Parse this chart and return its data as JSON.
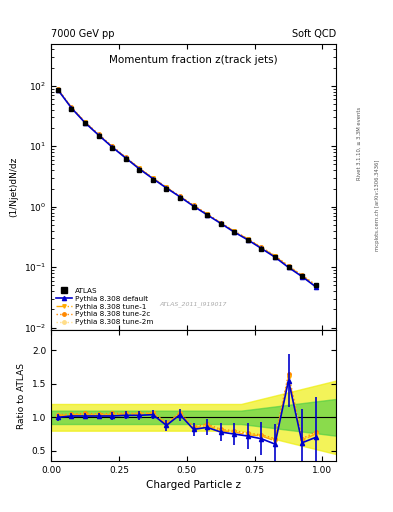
{
  "title_main": "Momentum fraction z(track jets)",
  "header_left": "7000 GeV pp",
  "header_right": "Soft QCD",
  "ylabel_main": "(1/Njet)dN/dz",
  "ylabel_ratio": "Ratio to ATLAS",
  "xlabel": "Charged Particle z",
  "right_label_top": "Rivet 3.1.10, ≥ 3.3M events",
  "right_label_bottom": "mcplots.cern.ch [arXiv:1306.3436]",
  "watermark": "ATLAS_2011_I919017",
  "atlas_label": "ATLAS",
  "legend_entries": [
    "ATLAS",
    "Pythia 8.308 default",
    "Pythia 8.308 tune-1",
    "Pythia 8.308 tune-2c",
    "Pythia 8.308 tune-2m"
  ],
  "ylim_main": [
    0.009,
    500
  ],
  "ylim_ratio": [
    0.35,
    2.3
  ],
  "xlim": [
    0.0,
    1.05
  ],
  "colors": {
    "atlas": "#000000",
    "default": "#0000cc",
    "tune1": "#ffaa00",
    "tune2c": "#ff8800",
    "tune2m": "#ffdd88",
    "band_green": "#44cc44",
    "band_yellow": "#eeee00"
  },
  "z_values": [
    0.025,
    0.075,
    0.125,
    0.175,
    0.225,
    0.275,
    0.325,
    0.375,
    0.425,
    0.475,
    0.525,
    0.575,
    0.625,
    0.675,
    0.725,
    0.775,
    0.825,
    0.875,
    0.925,
    0.975
  ],
  "atlas_y": [
    85.0,
    42.0,
    24.0,
    15.0,
    9.5,
    6.2,
    4.1,
    2.8,
    2.0,
    1.4,
    1.0,
    0.72,
    0.52,
    0.38,
    0.28,
    0.2,
    0.145,
    0.1,
    0.072,
    0.05
  ],
  "atlas_yerr": [
    3.4,
    1.68,
    0.96,
    0.6,
    0.38,
    0.248,
    0.164,
    0.112,
    0.08,
    0.056,
    0.04,
    0.0288,
    0.0208,
    0.0152,
    0.0112,
    0.008,
    0.0058,
    0.004,
    0.0029,
    0.002
  ]
}
